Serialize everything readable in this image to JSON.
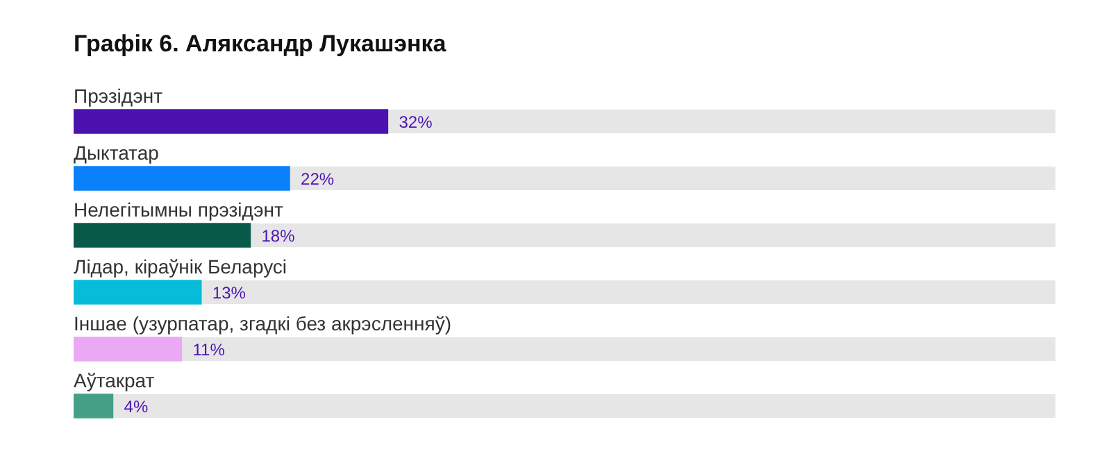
{
  "chart_data": {
    "type": "bar",
    "orientation": "horizontal",
    "title": "Графік 6. Аляксандр Лукашэнка",
    "categories": [
      "Прэзідэнт",
      "Дыктатар",
      "Нелегітымны прэзідэнт",
      "Лідар, кіраўнік Беларусі",
      "Іншае (узурпатар, згадкі без акрэсленняў)",
      "Аўтакрат"
    ],
    "values": [
      32,
      22,
      18,
      13,
      11,
      4
    ],
    "colors": [
      "#4b12b0",
      "#0a80fa",
      "#0a5a4a",
      "#06bcd8",
      "#eba8f5",
      "#45a088"
    ],
    "value_labels": [
      "32%",
      "22%",
      "18%",
      "13%",
      "11%",
      "4%"
    ],
    "xlim": [
      0,
      100
    ],
    "tick_labels": "y",
    "legend": false
  }
}
